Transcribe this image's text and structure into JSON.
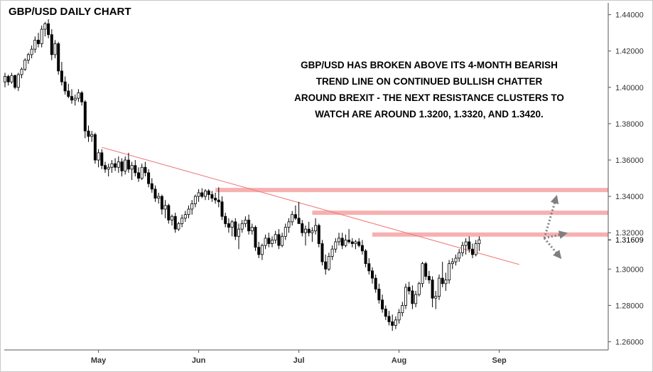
{
  "chart_data": {
    "type": "candlestick",
    "title": "GBP/USD DAILY CHART",
    "annotation": [
      "GBP/USD HAS BROKEN ABOVE ITS 4-MONTH BEARISH",
      "TREND LINE ON CONTINUED BULLISH CHATTER",
      "AROUND BREXIT - THE NEXT RESISTANCE CLUSTERS TO",
      "WATCH ARE AROUND 1.3200, 1.3320, AND 1.3420."
    ],
    "ylim": [
      1.2555,
      1.4465
    ],
    "yticks": [
      "1.44000",
      "1.42000",
      "1.40000",
      "1.38000",
      "1.36000",
      "1.34000",
      "1.32000",
      "1.30000",
      "1.28000",
      "1.26000"
    ],
    "ytick_values": [
      1.44,
      1.42,
      1.4,
      1.38,
      1.36,
      1.34,
      1.32,
      1.3,
      1.28,
      1.26
    ],
    "current_price": "1.31609",
    "xticks": [
      {
        "label": "May",
        "bar": 28
      },
      {
        "label": "Jun",
        "bar": 58
      },
      {
        "label": "Jul",
        "bar": 88
      },
      {
        "label": "Aug",
        "bar": 118
      },
      {
        "label": "Sep",
        "bar": 148
      }
    ],
    "colors": {
      "up_body": "#ffffff",
      "down_body": "#000000",
      "wick": "#000000",
      "trendline": "#f07a7a",
      "resistance": "#f7b0b0",
      "arrow": "#7f7f7f"
    },
    "trendline": {
      "from": {
        "bar": 29,
        "price": 1.367
      },
      "to": {
        "bar": 154,
        "price": 1.3025
      }
    },
    "resistance_levels": [
      {
        "price": 1.3435,
        "from_bar": 63
      },
      {
        "price": 1.331,
        "from_bar": 92
      },
      {
        "price": 1.319,
        "from_bar": 110
      }
    ],
    "projection_arrows": [
      {
        "from": {
          "bar": 161.5,
          "price": 1.317
        },
        "to": {
          "bar": 165,
          "price": 1.339
        }
      },
      {
        "from": {
          "bar": 161.5,
          "price": 1.317
        },
        "to": {
          "bar": 167.5,
          "price": 1.3195
        }
      },
      {
        "from": {
          "bar": 161.5,
          "price": 1.317
        },
        "to": {
          "bar": 166,
          "price": 1.307
        }
      }
    ],
    "candles": [
      [
        1.403,
        1.408,
        1.4,
        1.406
      ],
      [
        1.406,
        1.407,
        1.401,
        1.403
      ],
      [
        1.403,
        1.408,
        1.402,
        1.4065
      ],
      [
        1.4065,
        1.407,
        1.399,
        1.4
      ],
      [
        1.4,
        1.408,
        1.398,
        1.407
      ],
      [
        1.407,
        1.411,
        1.405,
        1.41
      ],
      [
        1.41,
        1.416,
        1.409,
        1.415
      ],
      [
        1.415,
        1.419,
        1.413,
        1.418
      ],
      [
        1.418,
        1.423,
        1.416,
        1.421
      ],
      [
        1.421,
        1.428,
        1.419,
        1.426
      ],
      [
        1.426,
        1.43,
        1.422,
        1.424
      ],
      [
        1.424,
        1.434,
        1.422,
        1.432
      ],
      [
        1.432,
        1.436,
        1.428,
        1.435
      ],
      [
        1.435,
        1.4375,
        1.427,
        1.429
      ],
      [
        1.429,
        1.432,
        1.415,
        1.418
      ],
      [
        1.418,
        1.426,
        1.416,
        1.424
      ],
      [
        1.424,
        1.425,
        1.407,
        1.409
      ],
      [
        1.409,
        1.414,
        1.401,
        1.403
      ],
      [
        1.403,
        1.406,
        1.396,
        1.398
      ],
      [
        1.398,
        1.402,
        1.394,
        1.395
      ],
      [
        1.395,
        1.399,
        1.391,
        1.393
      ],
      [
        1.393,
        1.396,
        1.39,
        1.394
      ],
      [
        1.394,
        1.399,
        1.392,
        1.397
      ],
      [
        1.397,
        1.398,
        1.39,
        1.392
      ],
      [
        1.392,
        1.393,
        1.372,
        1.376
      ],
      [
        1.376,
        1.379,
        1.37,
        1.373
      ],
      [
        1.373,
        1.376,
        1.37,
        1.374
      ],
      [
        1.374,
        1.375,
        1.358,
        1.36
      ],
      [
        1.36,
        1.366,
        1.356,
        1.364
      ],
      [
        1.364,
        1.366,
        1.355,
        1.357
      ],
      [
        1.357,
        1.359,
        1.353,
        1.355
      ],
      [
        1.355,
        1.358,
        1.351,
        1.356
      ],
      [
        1.356,
        1.36,
        1.353,
        1.358
      ],
      [
        1.358,
        1.361,
        1.354,
        1.356
      ],
      [
        1.356,
        1.362,
        1.353,
        1.359
      ],
      [
        1.359,
        1.361,
        1.351,
        1.354
      ],
      [
        1.354,
        1.362,
        1.352,
        1.36
      ],
      [
        1.36,
        1.364,
        1.353,
        1.355
      ],
      [
        1.355,
        1.359,
        1.349,
        1.357
      ],
      [
        1.357,
        1.36,
        1.351,
        1.353
      ],
      [
        1.353,
        1.356,
        1.348,
        1.35
      ],
      [
        1.35,
        1.358,
        1.349,
        1.356
      ],
      [
        1.356,
        1.359,
        1.351,
        1.353
      ],
      [
        1.353,
        1.355,
        1.345,
        1.347
      ],
      [
        1.347,
        1.35,
        1.342,
        1.344
      ],
      [
        1.344,
        1.346,
        1.337,
        1.339
      ],
      [
        1.339,
        1.342,
        1.336,
        1.34
      ],
      [
        1.34,
        1.341,
        1.33,
        1.333
      ],
      [
        1.333,
        1.338,
        1.328,
        1.335
      ],
      [
        1.335,
        1.336,
        1.325,
        1.327
      ],
      [
        1.327,
        1.33,
        1.324,
        1.329
      ],
      [
        1.329,
        1.331,
        1.32,
        1.322
      ],
      [
        1.322,
        1.326,
        1.321,
        1.325
      ],
      [
        1.325,
        1.33,
        1.323,
        1.328
      ],
      [
        1.328,
        1.332,
        1.326,
        1.33
      ],
      [
        1.33,
        1.335,
        1.328,
        1.333
      ],
      [
        1.333,
        1.338,
        1.33,
        1.336
      ],
      [
        1.336,
        1.341,
        1.334,
        1.34
      ],
      [
        1.34,
        1.344,
        1.337,
        1.342
      ],
      [
        1.342,
        1.3445,
        1.339,
        1.34
      ],
      [
        1.34,
        1.344,
        1.338,
        1.343
      ],
      [
        1.343,
        1.344,
        1.338,
        1.341
      ],
      [
        1.341,
        1.343,
        1.337,
        1.339
      ],
      [
        1.339,
        1.342,
        1.336,
        1.338
      ],
      [
        1.338,
        1.345,
        1.334,
        1.337
      ],
      [
        1.337,
        1.34,
        1.327,
        1.329
      ],
      [
        1.329,
        1.331,
        1.323,
        1.325
      ],
      [
        1.325,
        1.328,
        1.32,
        1.323
      ],
      [
        1.323,
        1.327,
        1.318,
        1.326
      ],
      [
        1.326,
        1.328,
        1.316,
        1.318
      ],
      [
        1.318,
        1.325,
        1.311,
        1.322
      ],
      [
        1.322,
        1.327,
        1.32,
        1.325
      ],
      [
        1.325,
        1.329,
        1.323,
        1.327
      ],
      [
        1.327,
        1.33,
        1.319,
        1.321
      ],
      [
        1.321,
        1.325,
        1.319,
        1.323
      ],
      [
        1.323,
        1.324,
        1.31,
        1.312
      ],
      [
        1.312,
        1.315,
        1.306,
        1.308
      ],
      [
        1.308,
        1.314,
        1.305,
        1.313
      ],
      [
        1.313,
        1.319,
        1.311,
        1.317
      ],
      [
        1.317,
        1.32,
        1.312,
        1.314
      ],
      [
        1.314,
        1.318,
        1.312,
        1.316
      ],
      [
        1.316,
        1.321,
        1.314,
        1.319
      ],
      [
        1.319,
        1.322,
        1.311,
        1.313
      ],
      [
        1.313,
        1.32,
        1.312,
        1.318
      ],
      [
        1.318,
        1.325,
        1.316,
        1.323
      ],
      [
        1.323,
        1.328,
        1.32,
        1.326
      ],
      [
        1.326,
        1.332,
        1.324,
        1.33
      ],
      [
        1.33,
        1.335,
        1.327,
        1.328
      ],
      [
        1.328,
        1.337,
        1.325,
        1.325
      ],
      [
        1.325,
        1.327,
        1.318,
        1.32
      ],
      [
        1.32,
        1.324,
        1.313,
        1.322
      ],
      [
        1.322,
        1.326,
        1.318,
        1.32
      ],
      [
        1.32,
        1.323,
        1.315,
        1.321
      ],
      [
        1.321,
        1.328,
        1.319,
        1.324
      ],
      [
        1.324,
        1.325,
        1.312,
        1.314
      ],
      [
        1.314,
        1.316,
        1.302,
        1.304
      ],
      [
        1.304,
        1.308,
        1.297,
        1.3
      ],
      [
        1.3,
        1.309,
        1.299,
        1.307
      ],
      [
        1.307,
        1.313,
        1.305,
        1.311
      ],
      [
        1.311,
        1.317,
        1.309,
        1.315
      ],
      [
        1.315,
        1.32,
        1.313,
        1.317
      ],
      [
        1.317,
        1.32,
        1.311,
        1.313
      ],
      [
        1.313,
        1.319,
        1.312,
        1.316
      ],
      [
        1.316,
        1.322,
        1.314,
        1.315
      ],
      [
        1.315,
        1.317,
        1.312,
        1.314
      ],
      [
        1.314,
        1.316,
        1.311,
        1.315
      ],
      [
        1.315,
        1.317,
        1.312,
        1.313
      ],
      [
        1.313,
        1.316,
        1.308,
        1.31
      ],
      [
        1.31,
        1.311,
        1.301,
        1.303
      ],
      [
        1.303,
        1.306,
        1.297,
        1.299
      ],
      [
        1.299,
        1.301,
        1.292,
        1.295
      ],
      [
        1.295,
        1.297,
        1.287,
        1.289
      ],
      [
        1.289,
        1.292,
        1.281,
        1.283
      ],
      [
        1.283,
        1.286,
        1.276,
        1.278
      ],
      [
        1.278,
        1.28,
        1.272,
        1.274
      ],
      [
        1.274,
        1.277,
        1.269,
        1.271
      ],
      [
        1.271,
        1.275,
        1.266,
        1.269
      ],
      [
        1.269,
        1.274,
        1.267,
        1.272
      ],
      [
        1.272,
        1.278,
        1.27,
        1.276
      ],
      [
        1.276,
        1.282,
        1.274,
        1.28
      ],
      [
        1.28,
        1.292,
        1.278,
        1.29
      ],
      [
        1.29,
        1.293,
        1.286,
        1.288
      ],
      [
        1.288,
        1.291,
        1.278,
        1.281
      ],
      [
        1.281,
        1.288,
        1.279,
        1.286
      ],
      [
        1.286,
        1.293,
        1.285,
        1.292
      ],
      [
        1.292,
        1.304,
        1.29,
        1.303
      ],
      [
        1.303,
        1.304,
        1.294,
        1.296
      ],
      [
        1.296,
        1.299,
        1.292,
        1.294
      ],
      [
        1.294,
        1.296,
        1.279,
        1.284
      ],
      [
        1.284,
        1.288,
        1.278,
        1.285
      ],
      [
        1.285,
        1.297,
        1.283,
        1.295
      ],
      [
        1.295,
        1.304,
        1.29,
        1.292
      ],
      [
        1.292,
        1.298,
        1.288,
        1.294
      ],
      [
        1.294,
        1.305,
        1.292,
        1.303
      ],
      [
        1.303,
        1.306,
        1.3,
        1.304
      ],
      [
        1.304,
        1.308,
        1.302,
        1.306
      ],
      [
        1.306,
        1.311,
        1.304,
        1.309
      ],
      [
        1.309,
        1.315,
        1.307,
        1.313
      ],
      [
        1.313,
        1.317,
        1.308,
        1.315
      ],
      [
        1.315,
        1.318,
        1.309,
        1.311
      ],
      [
        1.311,
        1.314,
        1.306,
        1.308
      ],
      [
        1.308,
        1.316,
        1.307,
        1.314
      ],
      [
        1.314,
        1.318,
        1.31,
        1.3161
      ]
    ]
  }
}
